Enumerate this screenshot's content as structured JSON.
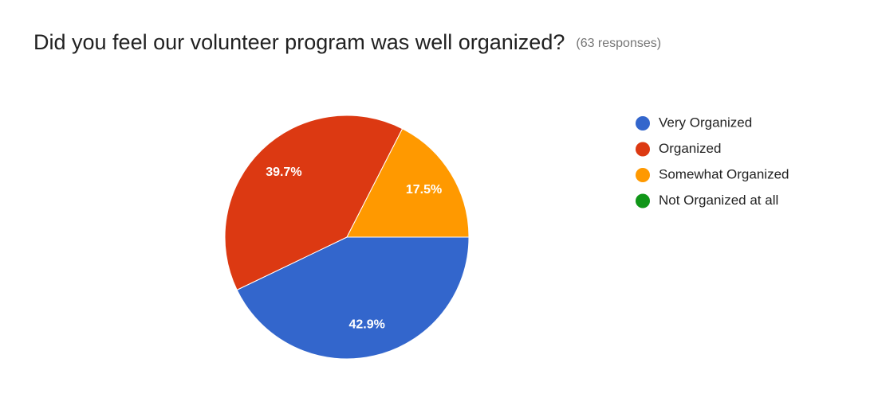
{
  "chart_data": {
    "type": "pie",
    "title": "Did you feel our volunteer program was well organized?",
    "subtitle": "(63 responses)",
    "categories": [
      "Very Organized",
      "Organized",
      "Somewhat Organized",
      "Not Organized at all"
    ],
    "values": [
      42.9,
      39.7,
      17.5,
      0
    ],
    "value_labels": [
      "42.9%",
      "39.7%",
      "17.5%",
      null
    ],
    "colors": [
      "#3366cc",
      "#dc3912",
      "#ff9900",
      "#109618"
    ],
    "legend": "right"
  }
}
